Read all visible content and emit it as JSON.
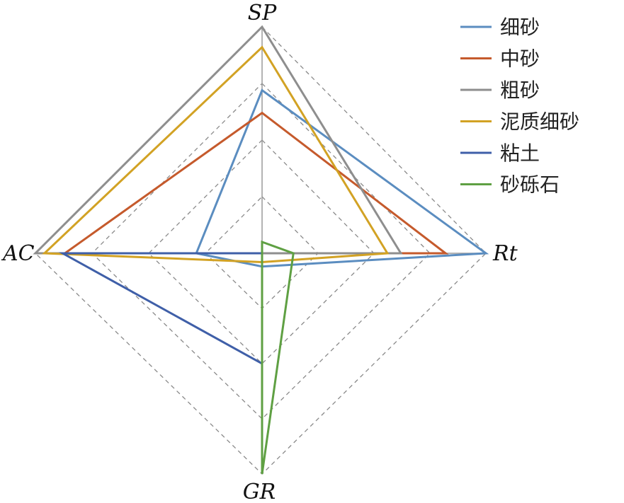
{
  "chart_data": {
    "type": "radar",
    "axes": [
      "SP",
      "Rt",
      "GR",
      "AC"
    ],
    "range": [
      0,
      1
    ],
    "grid_levels": 4,
    "series": [
      {
        "name": "细砂",
        "color": "#5B8DC0",
        "values": [
          0.72,
          1.0,
          0.06,
          0.29
        ]
      },
      {
        "name": "中砂",
        "color": "#C55A2C",
        "values": [
          0.62,
          0.82,
          0.0,
          0.87
        ]
      },
      {
        "name": "粗砂",
        "color": "#8E8E8E",
        "values": [
          1.0,
          0.62,
          0.0,
          1.0
        ]
      },
      {
        "name": "泥质细砂",
        "color": "#D2A224",
        "values": [
          0.91,
          0.56,
          0.04,
          0.96
        ]
      },
      {
        "name": "粘土",
        "color": "#3F5FA8",
        "values": [
          0.0,
          0.0,
          0.5,
          0.88
        ]
      },
      {
        "name": "砂砾石",
        "color": "#5FA043",
        "values": [
          0.05,
          0.14,
          1.0,
          0.0
        ]
      }
    ]
  }
}
